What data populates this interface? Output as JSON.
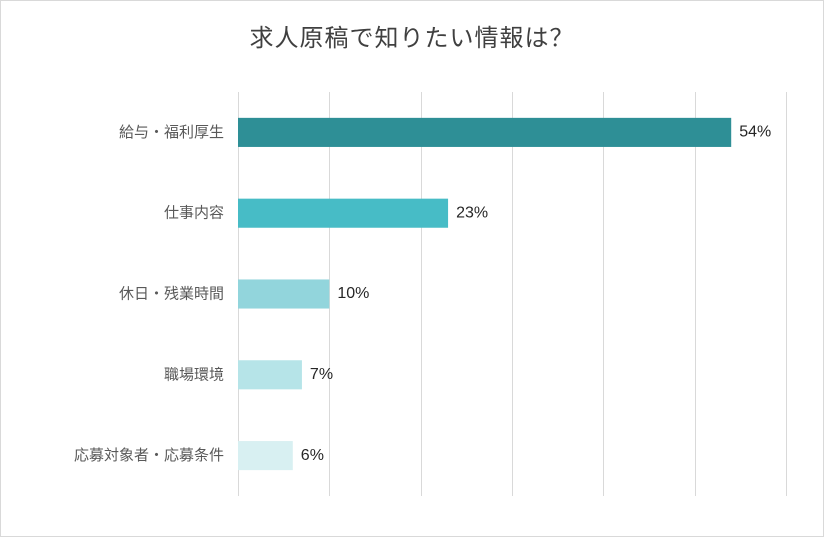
{
  "chart_data": {
    "type": "bar",
    "orientation": "horizontal",
    "title": "求人原稿で知りたい情報は？",
    "categories": [
      "給与・福利厚生",
      "仕事内容",
      "休日・残業時間",
      "職場環境",
      "応募対象者・応募条件"
    ],
    "values": [
      54,
      23,
      10,
      7,
      6
    ],
    "data_labels": [
      "54%",
      "23%",
      "10%",
      "7%",
      "6%"
    ],
    "bar_colors": [
      "#2e8f96",
      "#47bcc6",
      "#92d5dc",
      "#b6e4e8",
      "#d8f0f2"
    ],
    "xlim": [
      0,
      60
    ],
    "grid": true,
    "legend": false
  }
}
